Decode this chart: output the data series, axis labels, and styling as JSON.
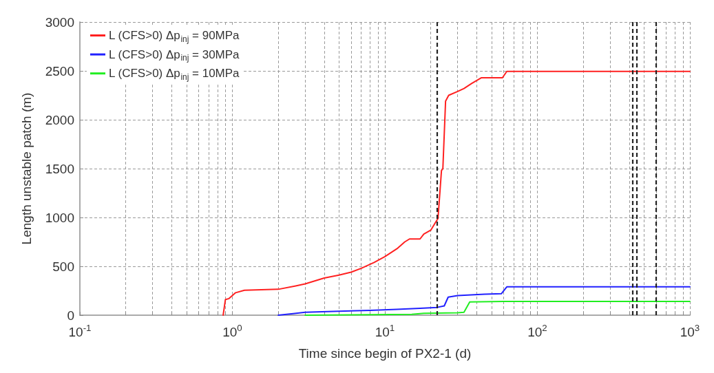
{
  "chart_data": {
    "type": "line",
    "xlabel": "Time since begin of PX2-1 (d)",
    "ylabel": "Length unstable patch (m)",
    "log": "x",
    "grid": true,
    "legend": "top left",
    "marker": "none",
    "line_style": "solid",
    "xlim": [
      0.1,
      1000
    ],
    "ylim": [
      0,
      3000
    ],
    "xticks": [
      {
        "value": 0.1,
        "label": "10$^{-1}$"
      },
      {
        "value": 0.2,
        "label": null
      },
      {
        "value": 0.3,
        "label": null
      },
      {
        "value": 0.4,
        "label": null
      },
      {
        "value": 0.5,
        "label": null
      },
      {
        "value": 0.6,
        "label": null
      },
      {
        "value": 0.7,
        "label": null
      },
      {
        "value": 0.8,
        "label": null
      },
      {
        "value": 0.9,
        "label": null
      },
      {
        "value": 1,
        "label": "10$^{0}$"
      },
      {
        "value": 2,
        "label": null
      },
      {
        "value": 3,
        "label": null
      },
      {
        "value": 4,
        "label": null
      },
      {
        "value": 5,
        "label": null
      },
      {
        "value": 6,
        "label": null
      },
      {
        "value": 7,
        "label": null
      },
      {
        "value": 8,
        "label": null
      },
      {
        "value": 9,
        "label": null
      },
      {
        "value": 10,
        "label": "10$^{1}$"
      },
      {
        "value": 20,
        "label": null
      },
      {
        "value": 30,
        "label": null
      },
      {
        "value": 40,
        "label": null
      },
      {
        "value": 50,
        "label": null
      },
      {
        "value": 60,
        "label": null
      },
      {
        "value": 70,
        "label": null
      },
      {
        "value": 80,
        "label": null
      },
      {
        "value": 90,
        "label": null
      },
      {
        "value": 100,
        "label": "10$^{2}$"
      },
      {
        "value": 200,
        "label": null
      },
      {
        "value": 300,
        "label": null
      },
      {
        "value": 400,
        "label": null
      },
      {
        "value": 500,
        "label": null
      },
      {
        "value": 600,
        "label": null
      },
      {
        "value": 700,
        "label": null
      },
      {
        "value": 800,
        "label": null
      },
      {
        "value": 900,
        "label": null
      },
      {
        "value": 1000,
        "label": "10$^{3}$"
      }
    ],
    "yticks": [
      0,
      500,
      1000,
      1500,
      2000,
      2500,
      3000
    ],
    "series": [
      {
        "name": "L (CFS>0) Δp$_{inj}$ = 90MPa",
        "color": "#ff2020",
        "x": [
          0.87,
          0.9,
          0.95,
          1.05,
          1.2,
          2.0,
          2.6,
          3,
          4,
          5,
          6,
          7,
          8.5,
          10,
          12,
          13.5,
          14.5,
          17,
          18,
          20,
          21.5,
          22.3,
          23.5,
          24,
          25,
          26.2,
          30,
          33,
          37,
          43,
          59,
          63,
          1000
        ],
        "values": [
          0,
          160,
          170,
          230,
          255,
          265,
          300,
          320,
          380,
          410,
          440,
          480,
          540,
          600,
          680,
          750,
          780,
          780,
          830,
          870,
          950,
          990,
          1480,
          1500,
          2190,
          2250,
          2290,
          2320,
          2370,
          2430,
          2430,
          2495,
          2495
        ]
      },
      {
        "name": "L (CFS>0) Δp$_{inj}$ = 30MPa",
        "color": "#2020ff",
        "x": [
          2.0,
          2.5,
          3,
          5,
          8,
          12,
          17,
          22,
          24.5,
          26,
          30,
          45,
          58,
          63,
          1000
        ],
        "values": [
          0,
          15,
          30,
          40,
          50,
          60,
          70,
          80,
          95,
          185,
          200,
          215,
          220,
          290,
          290
        ]
      },
      {
        "name": "L (CFS>0) Δp$_{inj}$ = 10MPa",
        "color": "#20ee20",
        "x": [
          3,
          8,
          15,
          18,
          30,
          33,
          36,
          60,
          1000
        ],
        "values": [
          0,
          5,
          8,
          20,
          25,
          30,
          135,
          140,
          140
        ]
      }
    ],
    "ref_lines": [
      {
        "axis": "x",
        "value": 22,
        "label": null,
        "color": "#222222",
        "line_style": "dashed"
      },
      {
        "axis": "x",
        "value": 420,
        "label": null,
        "color": "#222222",
        "line_style": "dashed"
      },
      {
        "axis": "x",
        "value": 450,
        "label": null,
        "color": "#222222",
        "line_style": "dashed"
      },
      {
        "axis": "x",
        "value": 600,
        "label": null,
        "color": "#222222",
        "line_style": "dashed"
      }
    ]
  }
}
